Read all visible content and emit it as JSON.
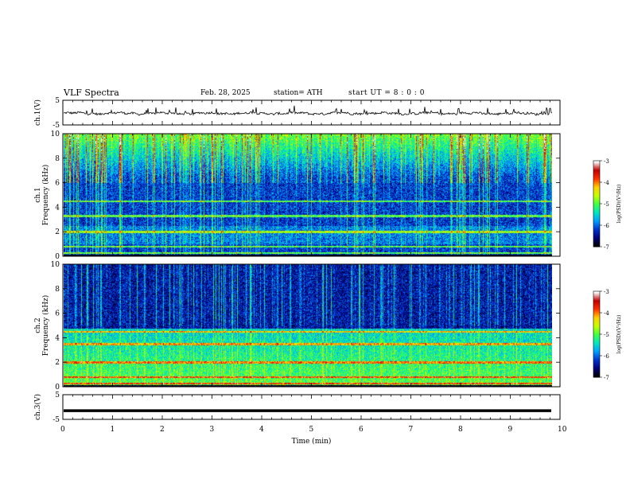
{
  "header": {
    "title": "VLF  Spectra",
    "date": "Feb. 28, 2025",
    "station": "station= ATH",
    "start": "start  UT  =   8  : 0   : 0"
  },
  "chart_data": [
    {
      "type": "line",
      "panel": "ch.1",
      "ylabel": "ch.1(V)",
      "ylim": [
        -5,
        5
      ],
      "yticks": [
        "5",
        "-5"
      ],
      "xlim": [
        0,
        10
      ],
      "note_values": "noisy waveform centered near -0.3 V, amplitude mostly within ±0.6 V with spikes up to ~ +2 V"
    },
    {
      "type": "heatmap",
      "panel": "ch.1",
      "ylabel": "ch.1\nFrequency (kHz)",
      "ylim": [
        0,
        10
      ],
      "yticks": [
        "0",
        "2",
        "4",
        "6",
        "8",
        "10"
      ],
      "xlim": [
        0,
        9.8
      ],
      "colorbar": {
        "label": "log(PSD)(V²/Hz)",
        "range": [
          -7,
          -3
        ],
        "ticks": [
          "-3",
          "-4",
          "-5",
          "-6",
          "-7"
        ]
      },
      "bands_khz": [
        0.3,
        0.8,
        2.0,
        3.3,
        4.5
      ],
      "summary": "background ~ -6 to -6.5 below 7 kHz, broadband sferics rising to -4/-3 above 7 kHz"
    },
    {
      "type": "heatmap",
      "panel": "ch.2",
      "ylabel": "ch.2\nFrequency (kHz)",
      "ylim": [
        0,
        10
      ],
      "yticks": [
        "0",
        "2",
        "4",
        "6",
        "8",
        "10"
      ],
      "xlim": [
        0,
        9.8
      ],
      "colorbar": {
        "label": "log(PSD)(V²/Hz)",
        "range": [
          -7,
          -3
        ],
        "ticks": [
          "-3",
          "-4",
          "-5",
          "-6",
          "-7"
        ]
      },
      "bands_khz": [
        0.3,
        0.8,
        2.0,
        3.5,
        4.5
      ],
      "summary": "stronger low-frequency content below 4.5 kHz (~ -5), dark blue above 6 kHz with vertical sferics"
    },
    {
      "type": "line",
      "panel": "ch.3",
      "ylabel": "ch.3(V)",
      "ylim": [
        -5,
        5
      ],
      "yticks": [
        "5",
        "-5"
      ],
      "xlim": [
        0,
        10
      ],
      "note_values": "flat thick line at about -1.5 V"
    }
  ],
  "xaxis": {
    "label": "Time  (min)",
    "ticks": [
      "0",
      "1",
      "2",
      "3",
      "4",
      "5",
      "6",
      "7",
      "8",
      "9",
      "10"
    ]
  },
  "colors": {
    "colormap": [
      "#000000",
      "#00007a",
      "#0033cc",
      "#00a0ff",
      "#00e8c0",
      "#40ff40",
      "#c8ff00",
      "#ffd000",
      "#ff3000",
      "#c00000",
      "#ffffff"
    ]
  }
}
